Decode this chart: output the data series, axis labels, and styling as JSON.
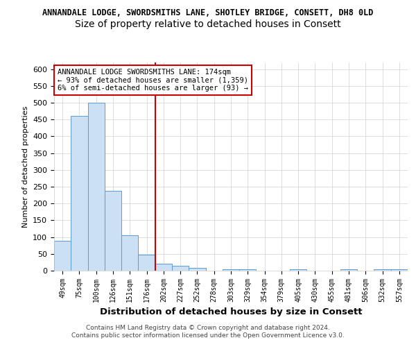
{
  "title": "ANNANDALE LODGE, SWORDSMITHS LANE, SHOTLEY BRIDGE, CONSETT, DH8 0LD",
  "subtitle": "Size of property relative to detached houses in Consett",
  "xlabel": "Distribution of detached houses by size in Consett",
  "ylabel": "Number of detached properties",
  "categories": [
    "49sqm",
    "75sqm",
    "100sqm",
    "126sqm",
    "151sqm",
    "176sqm",
    "202sqm",
    "227sqm",
    "252sqm",
    "278sqm",
    "303sqm",
    "329sqm",
    "354sqm",
    "379sqm",
    "405sqm",
    "430sqm",
    "455sqm",
    "481sqm",
    "506sqm",
    "532sqm",
    "557sqm"
  ],
  "values": [
    88,
    460,
    500,
    237,
    105,
    47,
    20,
    14,
    8,
    0,
    5,
    5,
    0,
    0,
    4,
    0,
    0,
    4,
    0,
    4,
    4
  ],
  "bar_color": "#cce0f5",
  "bar_edge_color": "#5b9bd5",
  "highlight_index": 5,
  "highlight_line_color": "#cc0000",
  "ylim": [
    0,
    620
  ],
  "yticks": [
    0,
    50,
    100,
    150,
    200,
    250,
    300,
    350,
    400,
    450,
    500,
    550,
    600
  ],
  "annotation_title": "ANNANDALE LODGE SWORDSMITHS LANE: 174sqm",
  "annotation_line1": "← 93% of detached houses are smaller (1,359)",
  "annotation_line2": "6% of semi-detached houses are larger (93) →",
  "annotation_box_color": "#ffffff",
  "annotation_border_color": "#cc0000",
  "footer1": "Contains HM Land Registry data © Crown copyright and database right 2024.",
  "footer2": "Contains public sector information licensed under the Open Government Licence v3.0.",
  "background_color": "#ffffff",
  "grid_color": "#d0d0d0",
  "title_fontsize": 8.5,
  "subtitle_fontsize": 10
}
